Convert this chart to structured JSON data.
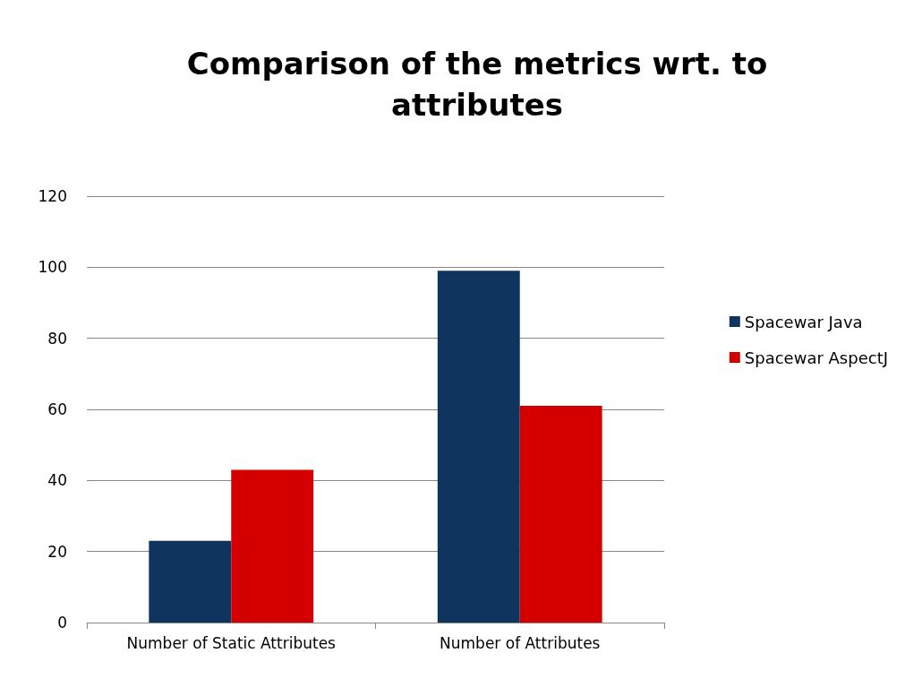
{
  "chart_data": {
    "type": "bar",
    "title": "Comparison of the metrics wrt. to\nattributes",
    "categories": [
      "Number of Static Attributes",
      "Number of Attributes"
    ],
    "series": [
      {
        "name": "Spacewar Java",
        "color": "#0f355e",
        "values": [
          23,
          99
        ]
      },
      {
        "name": "Spacewar AspectJ",
        "color": "#d40000",
        "values": [
          43,
          61
        ]
      }
    ],
    "ylim": [
      0,
      120
    ],
    "yticks": [
      0,
      20,
      40,
      60,
      80,
      100,
      120
    ],
    "grid": "y",
    "legend": "right"
  }
}
